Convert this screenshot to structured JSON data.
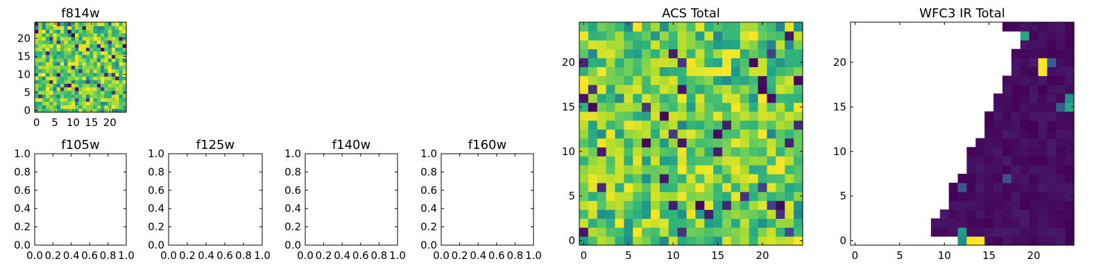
{
  "chart_data": [
    {
      "id": "f814w",
      "type": "heatmap",
      "title": "f814w",
      "xlim": [
        -0.5,
        24.5
      ],
      "ylim": [
        -0.5,
        24.5
      ],
      "xticks": [
        0,
        5,
        10,
        15,
        20
      ],
      "yticks": [
        0,
        5,
        10,
        15,
        20
      ],
      "colormap": "viridis",
      "grid_size": 25,
      "pattern": "noise",
      "note": "25x25 pixel map, mostly mid-to-high values with scattered low pixels"
    },
    {
      "id": "f105w",
      "type": "heatmap",
      "title": "f105w",
      "xlim": [
        0.0,
        1.0
      ],
      "ylim": [
        0.0,
        1.0
      ],
      "xticks": [
        "0.0",
        "0.2",
        "0.4",
        "0.6",
        "0.8",
        "1.0"
      ],
      "yticks": [
        "0.0",
        "0.2",
        "0.4",
        "0.6",
        "0.8",
        "1.0"
      ],
      "empty": true
    },
    {
      "id": "f125w",
      "type": "heatmap",
      "title": "f125w",
      "xlim": [
        0.0,
        1.0
      ],
      "ylim": [
        0.0,
        1.0
      ],
      "xticks": [
        "0.0",
        "0.2",
        "0.4",
        "0.6",
        "0.8",
        "1.0"
      ],
      "yticks": [
        "0.0",
        "0.2",
        "0.4",
        "0.6",
        "0.8",
        "1.0"
      ],
      "empty": true
    },
    {
      "id": "f140w",
      "type": "heatmap",
      "title": "f140w",
      "xlim": [
        0.0,
        1.0
      ],
      "ylim": [
        0.0,
        1.0
      ],
      "xticks": [
        "0.0",
        "0.2",
        "0.4",
        "0.6",
        "0.8",
        "1.0"
      ],
      "yticks": [
        "0.0",
        "0.2",
        "0.4",
        "0.6",
        "0.8",
        "1.0"
      ],
      "empty": true
    },
    {
      "id": "f160w",
      "type": "heatmap",
      "title": "f160w",
      "xlim": [
        0.0,
        1.0
      ],
      "ylim": [
        0.0,
        1.0
      ],
      "xticks": [
        "0.0",
        "0.2",
        "0.4",
        "0.6",
        "0.8",
        "1.0"
      ],
      "yticks": [
        "0.0",
        "0.2",
        "0.4",
        "0.6",
        "0.8",
        "1.0"
      ],
      "empty": true
    },
    {
      "id": "acs-total",
      "type": "heatmap",
      "title": "ACS Total",
      "xlim": [
        -0.5,
        24.5
      ],
      "ylim": [
        -0.5,
        24.5
      ],
      "xticks": [
        0,
        5,
        10,
        15,
        20
      ],
      "yticks": [
        0,
        5,
        10,
        15,
        20
      ],
      "colormap": "viridis",
      "grid_size": 25,
      "pattern": "noise",
      "note": "25x25 pixel map, mostly mid-to-high values with scattered low pixels"
    },
    {
      "id": "wfc3-ir-total",
      "type": "heatmap",
      "title": "WFC3 IR Total",
      "xlim": [
        -0.5,
        24.5
      ],
      "ylim": [
        -0.5,
        24.5
      ],
      "xticks": [
        0,
        5,
        10,
        15,
        20
      ],
      "yticks": [
        0,
        5,
        10,
        15,
        20
      ],
      "colormap": "viridis",
      "grid_size": 25,
      "pattern": "wedge",
      "wedge_left_edge_by_row": [
        12,
        9,
        9,
        10,
        11,
        11,
        11,
        12,
        13,
        13,
        13,
        14,
        15,
        15,
        15,
        16,
        16,
        17,
        17,
        18,
        18,
        18,
        19,
        19,
        17
      ],
      "masked_value": "white (no data)",
      "bright_pixels": [
        {
          "row": 0,
          "col": 13,
          "value": 1.0
        },
        {
          "row": 0,
          "col": 14,
          "value": 1.0
        },
        {
          "row": 0,
          "col": 12,
          "value": 0.5
        },
        {
          "row": 1,
          "col": 12,
          "value": 0.55
        },
        {
          "row": 7,
          "col": 11,
          "value": 0.55
        },
        {
          "row": 6,
          "col": 12,
          "value": 0.28
        },
        {
          "row": 7,
          "col": 17,
          "value": 0.25
        },
        {
          "row": 20,
          "col": 21,
          "value": 1.0
        },
        {
          "row": 19,
          "col": 21,
          "value": 1.0
        },
        {
          "row": 20,
          "col": 22,
          "value": 0.3
        },
        {
          "row": 15,
          "col": 24,
          "value": 0.6
        },
        {
          "row": 16,
          "col": 24,
          "value": 0.5
        },
        {
          "row": 15,
          "col": 23,
          "value": 0.3
        },
        {
          "row": 23,
          "col": 18,
          "value": 0.85
        },
        {
          "row": 23,
          "col": 19,
          "value": 0.6
        },
        {
          "row": 22,
          "col": 18,
          "value": 0.35
        }
      ],
      "note": "Values near zero (dark purple) inside a diagonal wedge; left part is masked"
    }
  ]
}
